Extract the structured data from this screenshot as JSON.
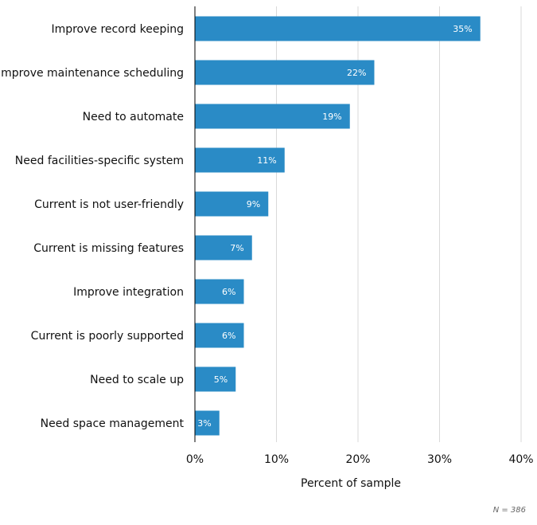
{
  "chart_data": {
    "type": "bar",
    "orientation": "horizontal",
    "title": "",
    "categories": [
      "Improve record keeping",
      "Improve maintenance scheduling",
      "Need to automate",
      "Need facilities-specific system",
      "Current is not user-friendly",
      "Current is missing features",
      "Improve integration",
      "Current is poorly supported",
      "Need to scale up",
      "Need space management"
    ],
    "values": [
      35,
      22,
      19,
      11,
      9,
      7,
      6,
      6,
      5,
      3
    ],
    "data_labels": [
      "35%",
      "22%",
      "19%",
      "11%",
      "9%",
      "7%",
      "6%",
      "6%",
      "5%",
      "3%"
    ],
    "xlabel": "Percent of sample",
    "ylabel": "",
    "xlim": [
      0,
      40
    ],
    "x_ticks": [
      0,
      10,
      20,
      30,
      40
    ],
    "x_tick_labels": [
      "0%",
      "10%",
      "20%",
      "30%",
      "40%"
    ],
    "grid": true,
    "bar_color": "#2a8bc6",
    "note": "N = 386"
  }
}
